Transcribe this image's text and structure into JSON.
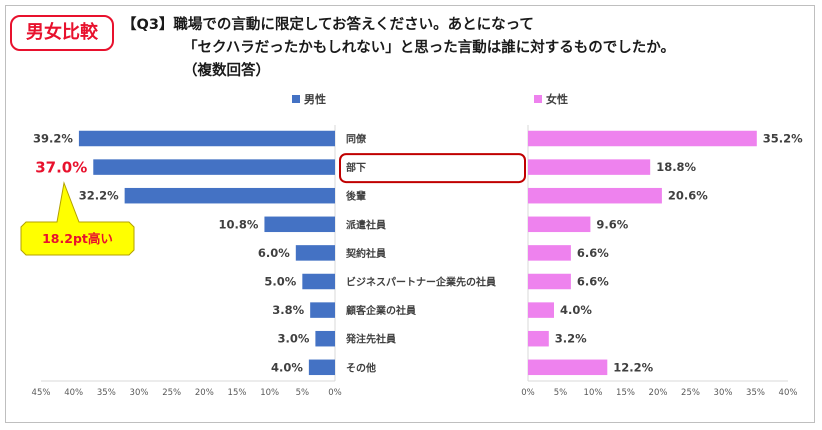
{
  "badge": "男女比較",
  "question": {
    "line1": "【Q3】職場での言動に限定してお答えください。あとになって",
    "line2": "「セクハラだったかもしれない」と思った言動は誰に対するものでしたか。",
    "line3": "（複数回答）"
  },
  "callout": {
    "text": "18.2pt高い",
    "highlight_value": "37.0%",
    "highlight_category": "部下"
  },
  "chart_data": {
    "type": "bar",
    "orientation": "horizontal",
    "categories": [
      "同僚",
      "部下",
      "後輩",
      "派遣社員",
      "契約社員",
      "ビジネスパートナー企業先の社員",
      "顧客企業の社員",
      "発注先社員",
      "その他"
    ],
    "series": [
      {
        "name": "男性",
        "color": "#4472c4",
        "values": [
          39.2,
          37.0,
          32.2,
          10.8,
          6.0,
          5.0,
          3.8,
          3.0,
          4.0
        ],
        "labels": [
          "39.2%",
          "37.0%",
          "32.2%",
          "10.8%",
          "6.0%",
          "5.0%",
          "3.8%",
          "3.0%",
          "4.0%"
        ]
      },
      {
        "name": "女性",
        "color": "#ee82ee",
        "values": [
          35.2,
          18.8,
          20.6,
          9.6,
          6.6,
          6.6,
          4.0,
          3.2,
          12.2
        ],
        "labels": [
          "35.2%",
          "18.8%",
          "20.6%",
          "9.6%",
          "6.6%",
          "6.6%",
          "4.0%",
          "3.2%",
          "12.2%"
        ]
      }
    ],
    "xlim": [
      0,
      45
    ],
    "ticks_male": [
      "45%",
      "40%",
      "35%",
      "30%",
      "25%",
      "20%",
      "15%",
      "10%",
      "5%",
      "0%"
    ],
    "ticks_female": [
      "0%",
      "5%",
      "10%",
      "15%",
      "20%",
      "25%",
      "30%",
      "35%",
      "40%"
    ],
    "grid": false,
    "legend": "top"
  },
  "colors": {
    "accent_red": "#e8112d",
    "callout_fill": "#ffff00",
    "callout_border": "#b3a100",
    "axis": "#d9d9d9"
  }
}
